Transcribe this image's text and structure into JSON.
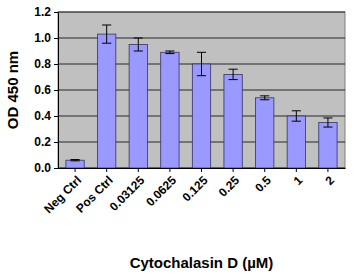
{
  "chart_data": {
    "type": "bar",
    "x_label": "Cytochalasin D (µM)",
    "y_label": "OD 450 nm",
    "categories": [
      "Neg Ctrl",
      "Pos Ctrl",
      "0.03125",
      "0.0625",
      "0.125",
      "0.25",
      "0.5",
      "1",
      "2"
    ],
    "values": [
      0.06,
      1.03,
      0.95,
      0.89,
      0.8,
      0.72,
      0.54,
      0.4,
      0.35
    ],
    "errors": [
      0.005,
      0.07,
      0.05,
      0.01,
      0.09,
      0.04,
      0.015,
      0.04,
      0.035
    ],
    "color": "#9999ff",
    "ylim": [
      0,
      1.2
    ],
    "yticks": [
      {
        "value": 0,
        "label": "0.0"
      },
      0.2,
      0.4,
      0.6,
      0.8,
      {
        "value": 1,
        "label": "1.0"
      },
      1.2
    ],
    "grid": true
  }
}
